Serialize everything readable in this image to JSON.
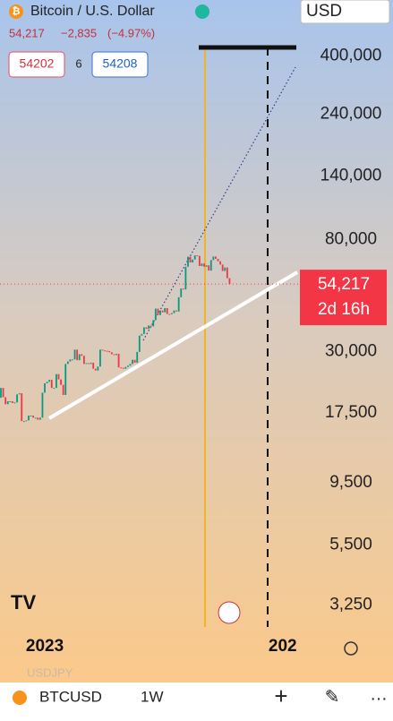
{
  "header": {
    "symbol": "Bitcoin / U.S. Dollar",
    "currency": "USD",
    "last": "54,217",
    "change": "−2,835",
    "change_pct": "(−4.97%)",
    "bid": "54202",
    "spread": "6",
    "ask": "54208"
  },
  "chart_data": {
    "type": "candlestick",
    "log_scale": true,
    "up_color": "#089981",
    "down_color": "#f23645",
    "categories": [
      null,
      null,
      null,
      null,
      null,
      null,
      null,
      null,
      null,
      null,
      null,
      null,
      null,
      null,
      null,
      null,
      null,
      null,
      null,
      null,
      null,
      null,
      null,
      null,
      null,
      null,
      null,
      null,
      null,
      null,
      null,
      null,
      null,
      null,
      null,
      null,
      null,
      null,
      null,
      null,
      null,
      null,
      null,
      null,
      null,
      null,
      null,
      null,
      null,
      null,
      null,
      null,
      null,
      null,
      null,
      null,
      null,
      null,
      null,
      null,
      null,
      null,
      null,
      null,
      null,
      null,
      null,
      null,
      null,
      null,
      null,
      null,
      null,
      null,
      null,
      null,
      null,
      null,
      null,
      null,
      null,
      null,
      null,
      null,
      null,
      null,
      null,
      null,
      null,
      null,
      null,
      null,
      null,
      null,
      null,
      null,
      null,
      null,
      null,
      null
    ],
    "open": [
      20000,
      21800,
      20100,
      18900,
      19400,
      19400,
      19100,
      19200,
      20600,
      20800,
      16300,
      16300,
      16400,
      17100,
      17100,
      16800,
      16800,
      16500,
      16800,
      20900,
      22700,
      23000,
      23400,
      21800,
      21800,
      24600,
      23500,
      22400,
      20500,
      26900,
      27500,
      28000,
      28000,
      30500,
      27800,
      29300,
      28900,
      26900,
      27100,
      26900,
      27200,
      25800,
      25400,
      26300,
      30500,
      30300,
      30200,
      30100,
      29800,
      29300,
      29100,
      29400,
      26100,
      26000,
      25800,
      26200,
      26500,
      26900,
      27900,
      27200,
      29900,
      34500,
      35000,
      37100,
      36600,
      37700,
      37400,
      39500,
      43700,
      41300,
      43000,
      42300,
      43900,
      41700,
      41600,
      42000,
      43000,
      42600,
      48300,
      52100,
      51700,
      63100,
      68900,
      65500,
      67200,
      69700,
      69400,
      63500,
      64900,
      63100,
      63900,
      61000,
      66900,
      69000,
      67600,
      66200,
      64300,
      60800,
      62700,
      57052
    ],
    "close": [
      21800,
      20100,
      18900,
      19400,
      19400,
      19100,
      19200,
      20600,
      20800,
      16300,
      16300,
      16400,
      17100,
      17100,
      16800,
      16800,
      16500,
      16800,
      20900,
      22700,
      23000,
      23400,
      21800,
      21800,
      24600,
      23500,
      22400,
      20500,
      26900,
      27500,
      28000,
      28000,
      30500,
      27800,
      29300,
      28900,
      26900,
      27100,
      26900,
      27200,
      25800,
      25400,
      26300,
      30500,
      30300,
      30200,
      30100,
      29800,
      29300,
      29100,
      29400,
      26100,
      26000,
      25800,
      26200,
      26500,
      26900,
      27900,
      27200,
      29900,
      34500,
      35000,
      37100,
      36600,
      37700,
      37400,
      39500,
      43700,
      41300,
      43000,
      42300,
      43900,
      41700,
      41600,
      42000,
      43000,
      42600,
      48300,
      52100,
      51700,
      63100,
      68900,
      65500,
      67200,
      69700,
      69400,
      63500,
      64900,
      63100,
      63900,
      61000,
      66900,
      69000,
      67600,
      66200,
      64300,
      60800,
      62700,
      57052,
      54217
    ],
    "ylim": [
      2680,
      478000
    ],
    "yticks": [
      {
        "value": 3250,
        "label": "3,250"
      },
      {
        "value": 5500,
        "label": "5,500"
      },
      {
        "value": 9500,
        "label": "9,500"
      },
      {
        "value": 17500,
        "label": "17,500"
      },
      {
        "value": 30000,
        "label": "30,000"
      },
      {
        "value": 80000,
        "label": "80,000"
      },
      {
        "value": 140000,
        "label": "140,000"
      },
      {
        "value": 240000,
        "label": "240,000"
      },
      {
        "value": 400000,
        "label": "400,000"
      }
    ],
    "xticks": [
      {
        "value": 19,
        "label": "2023"
      },
      {
        "value": 122,
        "label": "202"
      }
    ],
    "last_price": {
      "value": 54217,
      "label": "54,217"
    },
    "countdown": "2d 16h"
  },
  "toolbar": {
    "hidden_symbol": "USDJPY",
    "symbol": "BTCUSD",
    "interval": "1W"
  }
}
